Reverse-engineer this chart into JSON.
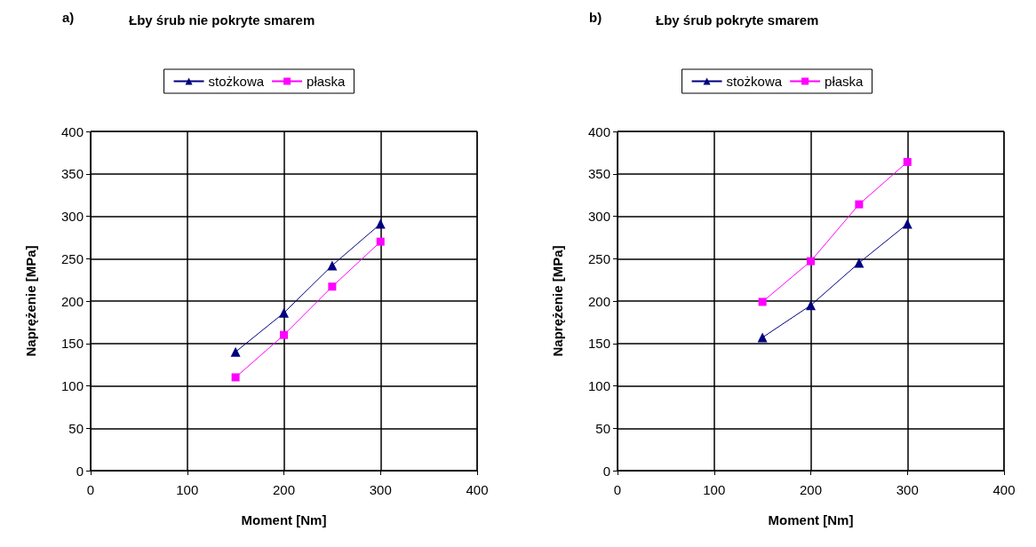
{
  "chart_data": [
    {
      "type": "line",
      "title": "Łby śrub nie pokryte smarem",
      "annotations": [
        "a)"
      ],
      "xlabel": "Moment [Nm]",
      "ylabel": "Naprężenie [MPa]",
      "x": [
        150,
        200,
        250,
        300
      ],
      "series": [
        {
          "name": "stożkowa",
          "color": "#000080",
          "marker": "triangle",
          "values": [
            140,
            186,
            242,
            291
          ]
        },
        {
          "name": "płaska",
          "color": "#ff00ff",
          "marker": "square",
          "values": [
            110,
            160,
            217,
            270
          ]
        }
      ],
      "xlim": [
        0,
        400
      ],
      "xticks": [
        0,
        100,
        200,
        300,
        400
      ],
      "ylim": [
        0,
        400
      ],
      "yticks": [
        0,
        50,
        100,
        150,
        200,
        250,
        300,
        350,
        400
      ],
      "grid": true,
      "legend": "top"
    },
    {
      "type": "line",
      "title": "Łby śrub pokryte smarem",
      "annotations": [
        "b)"
      ],
      "xlabel": "Moment [Nm]",
      "ylabel": "Naprężenie [MPa]",
      "x": [
        150,
        200,
        250,
        300
      ],
      "series": [
        {
          "name": "stożkowa",
          "color": "#000080",
          "marker": "triangle",
          "values": [
            157,
            195,
            245,
            291
          ]
        },
        {
          "name": "płaska",
          "color": "#ff00ff",
          "marker": "square",
          "values": [
            199,
            247,
            314,
            364
          ]
        }
      ],
      "xlim": [
        0,
        400
      ],
      "xticks": [
        0,
        100,
        200,
        300,
        400
      ],
      "ylim": [
        0,
        400
      ],
      "yticks": [
        0,
        50,
        100,
        150,
        200,
        250,
        300,
        350,
        400
      ],
      "grid": true,
      "legend": "top"
    }
  ]
}
